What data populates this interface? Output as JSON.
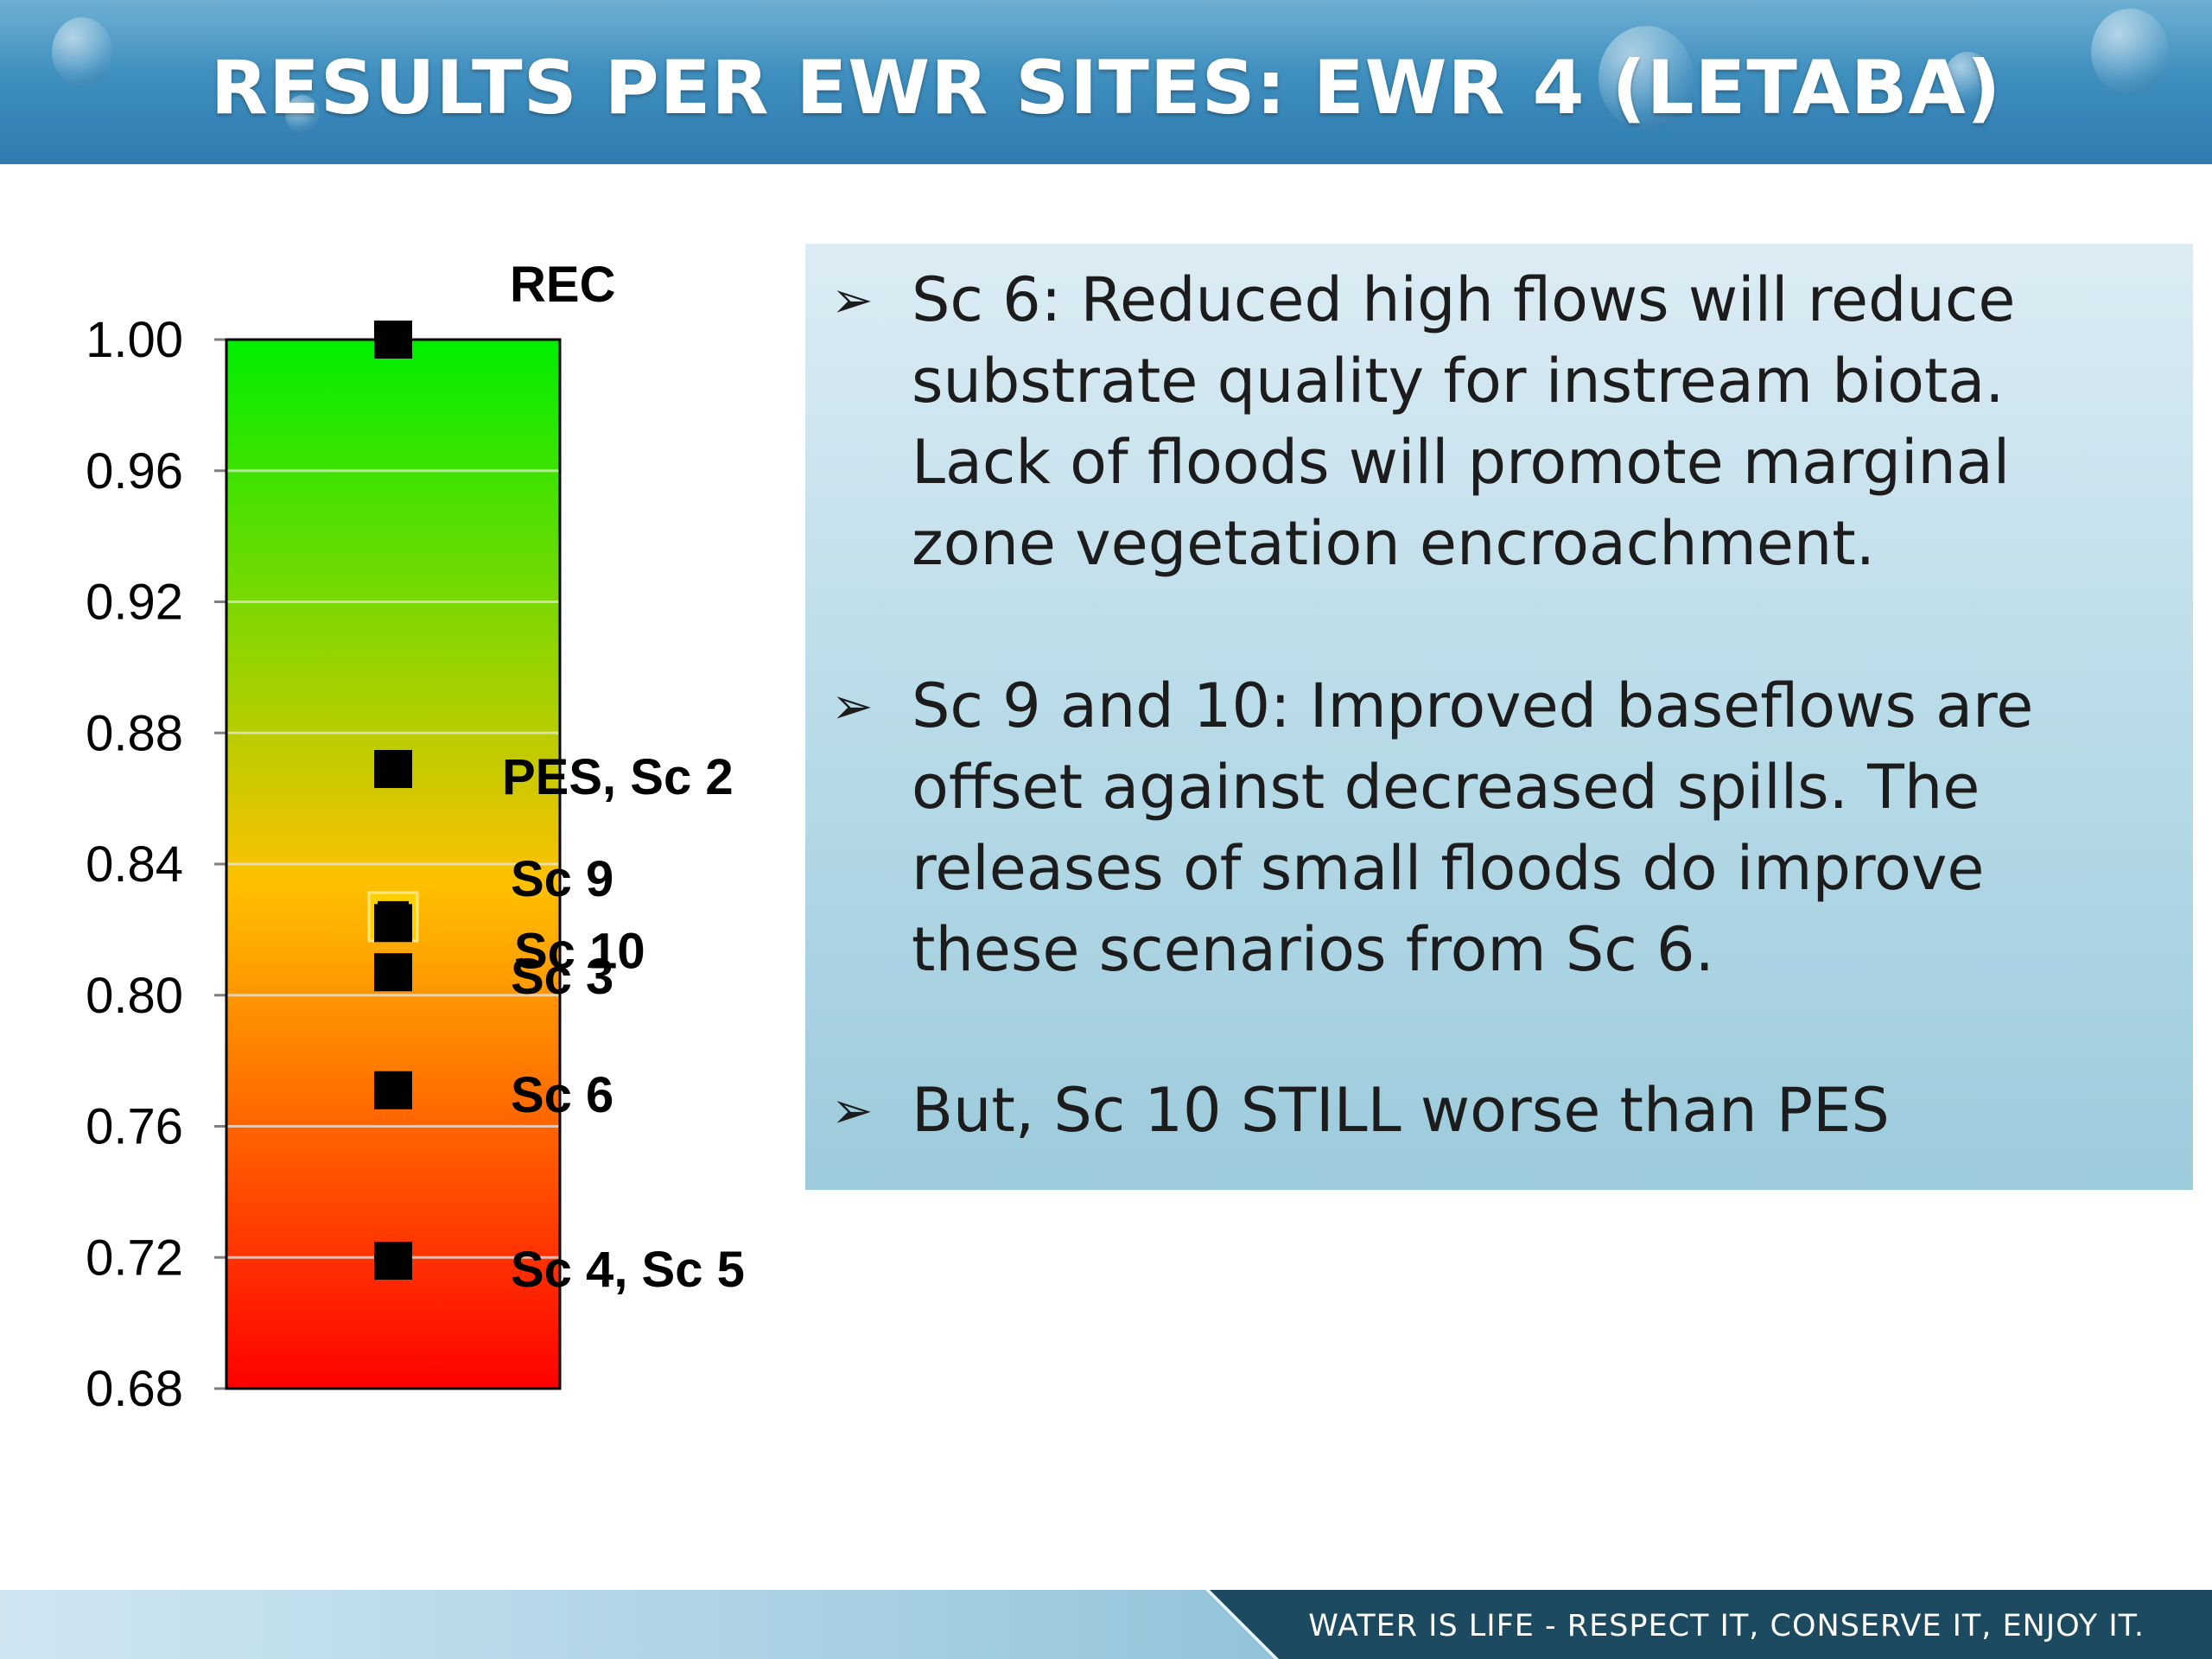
{
  "header": {
    "title": "RESULTS PER EWR SITES: EWR 4 (LETABA)"
  },
  "chart_data": {
    "type": "scatter",
    "ylim": [
      0.68,
      1.0
    ],
    "yticks": [
      "1.00",
      "0.96",
      "0.92",
      "0.88",
      "0.84",
      "0.80",
      "0.76",
      "0.72",
      "0.68"
    ],
    "gradient_colors": [
      "#00ee00",
      "#ffc000",
      "#ff0000"
    ],
    "grid": true,
    "points": [
      {
        "label": "REC",
        "y": 1.0
      },
      {
        "label": "PES, Sc 2",
        "y": 0.869
      },
      {
        "label": "Sc 9",
        "y": 0.825,
        "highlight": true
      },
      {
        "label": "Sc 10",
        "y": 0.822
      },
      {
        "label": "Sc 3",
        "y": 0.807
      },
      {
        "label": "Sc 6",
        "y": 0.771
      },
      {
        "label": "Sc 4, Sc 5",
        "y": 0.719
      }
    ]
  },
  "bullets": [
    {
      "marker": "➢",
      "text": "Sc 6: Reduced high flows will reduce\nsubstrate quality for instream biota.\nLack of floods will promote marginal\nzone vegetation encroachment."
    },
    {
      "marker": "➢",
      "text": "Sc 9 and 10: Improved baseflows are\noffset against decreased spills.  The\nreleases of small floods do improve\nthese scenarios from Sc 6."
    },
    {
      "marker": "➢",
      "text": "But, Sc 10 STILL worse than PES"
    }
  ],
  "footer": {
    "tagline": "WATER IS LIFE - RESPECT IT, CONSERVE IT, ENJOY IT."
  }
}
